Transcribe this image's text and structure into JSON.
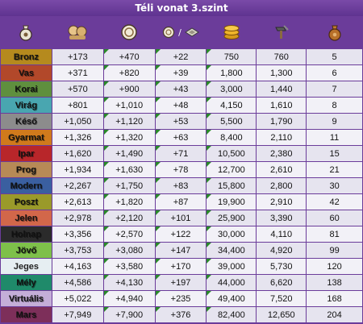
{
  "title": "Téli vonat 3.szint",
  "header": {
    "separator": "/",
    "icons": [
      "bag-icon",
      "players-icon",
      "medal-icon",
      "medal-small-icon",
      "diamond-goods-icon",
      "coins-icon",
      "hammer-icon",
      "bag-brown-icon"
    ]
  },
  "ages": [
    {
      "name": "Bronz",
      "color": "#b58a1e",
      "values": [
        "+173",
        "+470",
        "+22",
        "750",
        "760",
        "5"
      ]
    },
    {
      "name": "Vas",
      "color": "#b2482a",
      "values": [
        "+371",
        "+820",
        "+39",
        "1,800",
        "1,300",
        "6"
      ]
    },
    {
      "name": "Korai",
      "color": "#5f8f3e",
      "values": [
        "+570",
        "+900",
        "+43",
        "3,000",
        "1,440",
        "7"
      ]
    },
    {
      "name": "Virág",
      "color": "#49a6b0",
      "values": [
        "+801",
        "+1,010",
        "+48",
        "4,150",
        "1,610",
        "8"
      ]
    },
    {
      "name": "Késő",
      "color": "#8c8c8c",
      "values": [
        "+1,050",
        "+1,120",
        "+53",
        "5,500",
        "1,790",
        "9"
      ]
    },
    {
      "name": "Gyarmat",
      "color": "#d07a1c",
      "values": [
        "+1,326",
        "+1,320",
        "+63",
        "8,400",
        "2,110",
        "11"
      ]
    },
    {
      "name": "Ipar",
      "color": "#b8262a",
      "values": [
        "+1,620",
        "+1,490",
        "+71",
        "10,500",
        "2,380",
        "15"
      ]
    },
    {
      "name": "Prog",
      "color": "#b78a56",
      "values": [
        "+1,934",
        "+1,630",
        "+78",
        "12,700",
        "2,610",
        "21"
      ]
    },
    {
      "name": "Modern",
      "color": "#3a5fa0",
      "values": [
        "+2,267",
        "+1,750",
        "+83",
        "15,800",
        "2,800",
        "30"
      ]
    },
    {
      "name": "Poszt",
      "color": "#9a9a2a",
      "values": [
        "+2,613",
        "+1,820",
        "+87",
        "19,900",
        "2,910",
        "42"
      ]
    },
    {
      "name": "Jelen",
      "color": "#d2674a",
      "values": [
        "+2,978",
        "+2,120",
        "+101",
        "25,900",
        "3,390",
        "60"
      ]
    },
    {
      "name": "Holnap",
      "color": "#2b2b2b",
      "values": [
        "+3,356",
        "+2,570",
        "+122",
        "30,000",
        "4,110",
        "81"
      ]
    },
    {
      "name": "Jövő",
      "color": "#7ec04a",
      "values": [
        "+3,753",
        "+3,080",
        "+147",
        "34,400",
        "4,920",
        "99"
      ]
    },
    {
      "name": "Jeges",
      "color": "#e6eef2",
      "textColor": "#222222",
      "values": [
        "+4,163",
        "+3,580",
        "+170",
        "39,000",
        "5,730",
        "120"
      ]
    },
    {
      "name": "Mély",
      "color": "#1f8a6a",
      "values": [
        "+4,586",
        "+4,130",
        "+197",
        "44,000",
        "6,620",
        "138"
      ]
    },
    {
      "name": "Virtuális",
      "color": "#c4aed8",
      "values": [
        "+5,022",
        "+4,940",
        "+235",
        "49,400",
        "7,520",
        "168"
      ]
    },
    {
      "name": "Mars",
      "color": "#7d2f5a",
      "values": [
        "+7,949",
        "+7,900",
        "+376",
        "82,400",
        "12,650",
        "204"
      ]
    }
  ],
  "triangle_columns": [
    1,
    2,
    3
  ]
}
